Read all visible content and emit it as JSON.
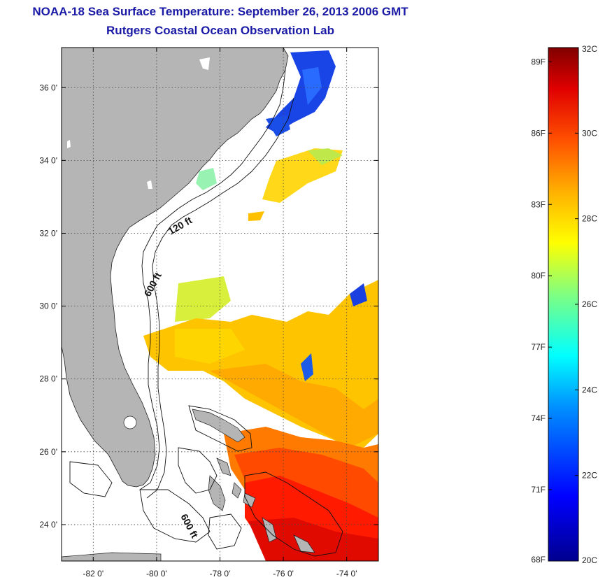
{
  "title": "NOAA-18 Sea Surface Temperature:  September 26, 2013 2006 GMT",
  "subtitle": "Rutgers Coastal Ocean Observation Lab",
  "map": {
    "lat_labels": [
      "36 0'",
      "34 0'",
      "32 0'",
      "30 0'",
      "28 0'",
      "26 0'",
      "24 0'"
    ],
    "lat_values": [
      36,
      34,
      32,
      30,
      28,
      26,
      24
    ],
    "lon_labels": [
      "-82 0'",
      "-80 0'",
      "-78 0'",
      "-76 0'",
      "-74 0'"
    ],
    "lon_values": [
      -82,
      -80,
      -78,
      -76,
      -74
    ],
    "lat_range": [
      23,
      37.1
    ],
    "lon_range": [
      -83,
      -73
    ],
    "contours": [
      {
        "label": "120 ft"
      },
      {
        "label": "600 ft"
      },
      {
        "label": "600 ft"
      }
    ],
    "land_color": "#b5b5b5",
    "grid": "dotted"
  },
  "colorbar": {
    "celsius_labels": [
      "32C",
      "30C",
      "28C",
      "26C",
      "24C",
      "22C",
      "20C"
    ],
    "fahrenheit_labels": [
      "89F",
      "86F",
      "83F",
      "80F",
      "77F",
      "74F",
      "71F",
      "68F"
    ],
    "range_c": [
      20,
      32
    ],
    "colors": [
      "#00008f",
      "#0000ff",
      "#0080ff",
      "#00ffff",
      "#80ff80",
      "#ffff00",
      "#ff8000",
      "#ff0000",
      "#800000"
    ]
  }
}
